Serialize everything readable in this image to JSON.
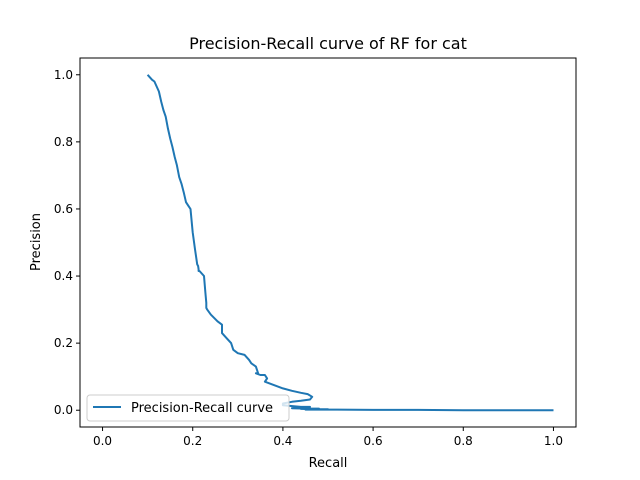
{
  "chart_data": {
    "type": "line",
    "title": "Precision-Recall curve of RF for cat",
    "xlabel": "Recall",
    "ylabel": "Precision",
    "xlim": [
      -0.05,
      1.05
    ],
    "ylim": [
      -0.05,
      1.05
    ],
    "xticks": [
      0.0,
      0.2,
      0.4,
      0.6,
      0.8,
      1.0
    ],
    "xtick_labels": [
      "0.0",
      "0.2",
      "0.4",
      "0.6",
      "0.8",
      "1.0"
    ],
    "yticks": [
      0.0,
      0.2,
      0.4,
      0.6,
      0.8,
      1.0
    ],
    "ytick_labels": [
      "0.0",
      "0.2",
      "0.4",
      "0.6",
      "0.8",
      "1.0"
    ],
    "grid": false,
    "legend": {
      "placement": "lower-left"
    },
    "series": [
      {
        "name": "Precision-Recall curve",
        "color": "#1f77b4",
        "x": [
          0.1,
          0.11,
          0.115,
          0.125,
          0.13,
          0.135,
          0.14,
          0.145,
          0.15,
          0.155,
          0.16,
          0.165,
          0.17,
          0.175,
          0.18,
          0.185,
          0.19,
          0.195,
          0.2,
          0.205,
          0.21,
          0.212,
          0.213,
          0.213,
          0.215,
          0.225,
          0.228,
          0.23,
          0.23,
          0.232,
          0.24,
          0.255,
          0.265,
          0.265,
          0.275,
          0.285,
          0.29,
          0.3,
          0.315,
          0.325,
          0.33,
          0.34,
          0.345,
          0.34,
          0.35,
          0.36,
          0.365,
          0.36,
          0.38,
          0.4,
          0.42,
          0.44,
          0.455,
          0.465,
          0.46,
          0.44,
          0.42,
          0.4,
          0.4,
          0.44,
          0.46,
          0.44,
          0.42,
          0.45,
          0.48,
          0.44,
          0.47,
          0.5,
          0.45,
          0.52,
          0.6,
          0.7,
          0.8,
          0.9,
          1.0
        ],
        "y": [
          1.0,
          0.985,
          0.98,
          0.95,
          0.92,
          0.895,
          0.875,
          0.84,
          0.81,
          0.785,
          0.755,
          0.73,
          0.695,
          0.675,
          0.65,
          0.62,
          0.61,
          0.6,
          0.53,
          0.48,
          0.435,
          0.43,
          0.42,
          0.415,
          0.415,
          0.4,
          0.35,
          0.32,
          0.305,
          0.3,
          0.285,
          0.265,
          0.255,
          0.23,
          0.215,
          0.2,
          0.18,
          0.17,
          0.165,
          0.15,
          0.14,
          0.13,
          0.11,
          0.11,
          0.105,
          0.105,
          0.095,
          0.085,
          0.075,
          0.065,
          0.058,
          0.052,
          0.048,
          0.04,
          0.032,
          0.028,
          0.025,
          0.02,
          0.015,
          0.01,
          0.01,
          0.008,
          0.006,
          0.005,
          0.005,
          0.004,
          0.003,
          0.003,
          0.002,
          0.002,
          0.001,
          0.001,
          0.0,
          0.0,
          0.0
        ]
      }
    ]
  }
}
